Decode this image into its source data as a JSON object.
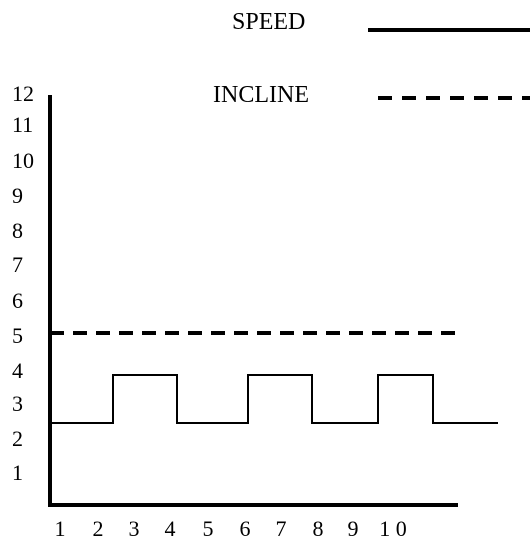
{
  "chart_data": {
    "type": "line",
    "x_ticks": [
      "1",
      "2",
      "3",
      "4",
      "5",
      "6",
      "7",
      "8",
      "9",
      "1 0"
    ],
    "y_ticks": [
      "1",
      "2",
      "3",
      "4",
      "5",
      "6",
      "7",
      "8",
      "9",
      "10",
      "11",
      "12"
    ],
    "ylim": [
      0,
      12
    ],
    "xlim": [
      0,
      10.5
    ],
    "grid": false,
    "legend_position": "top-right",
    "series": [
      {
        "name": "SPEED",
        "style": "solid",
        "x": [
          0,
          1,
          1,
          2,
          2,
          3,
          3,
          4,
          4,
          5,
          5,
          6,
          6,
          7,
          7,
          7.8,
          7.8,
          8.9,
          8.9,
          10.2
        ],
        "y": [
          2.6,
          2.6,
          3.6,
          3.6,
          2.6,
          2.6,
          3.6,
          3.6,
          2.6,
          2.6,
          3.6,
          3.6,
          2.6,
          2.6,
          3.6,
          3.6,
          2.6,
          2.6,
          2.6,
          2.6
        ]
      },
      {
        "name": "INCLINE",
        "style": "dashed",
        "x": [
          0,
          9.0
        ],
        "y": [
          4.6,
          4.6
        ]
      }
    ]
  }
}
